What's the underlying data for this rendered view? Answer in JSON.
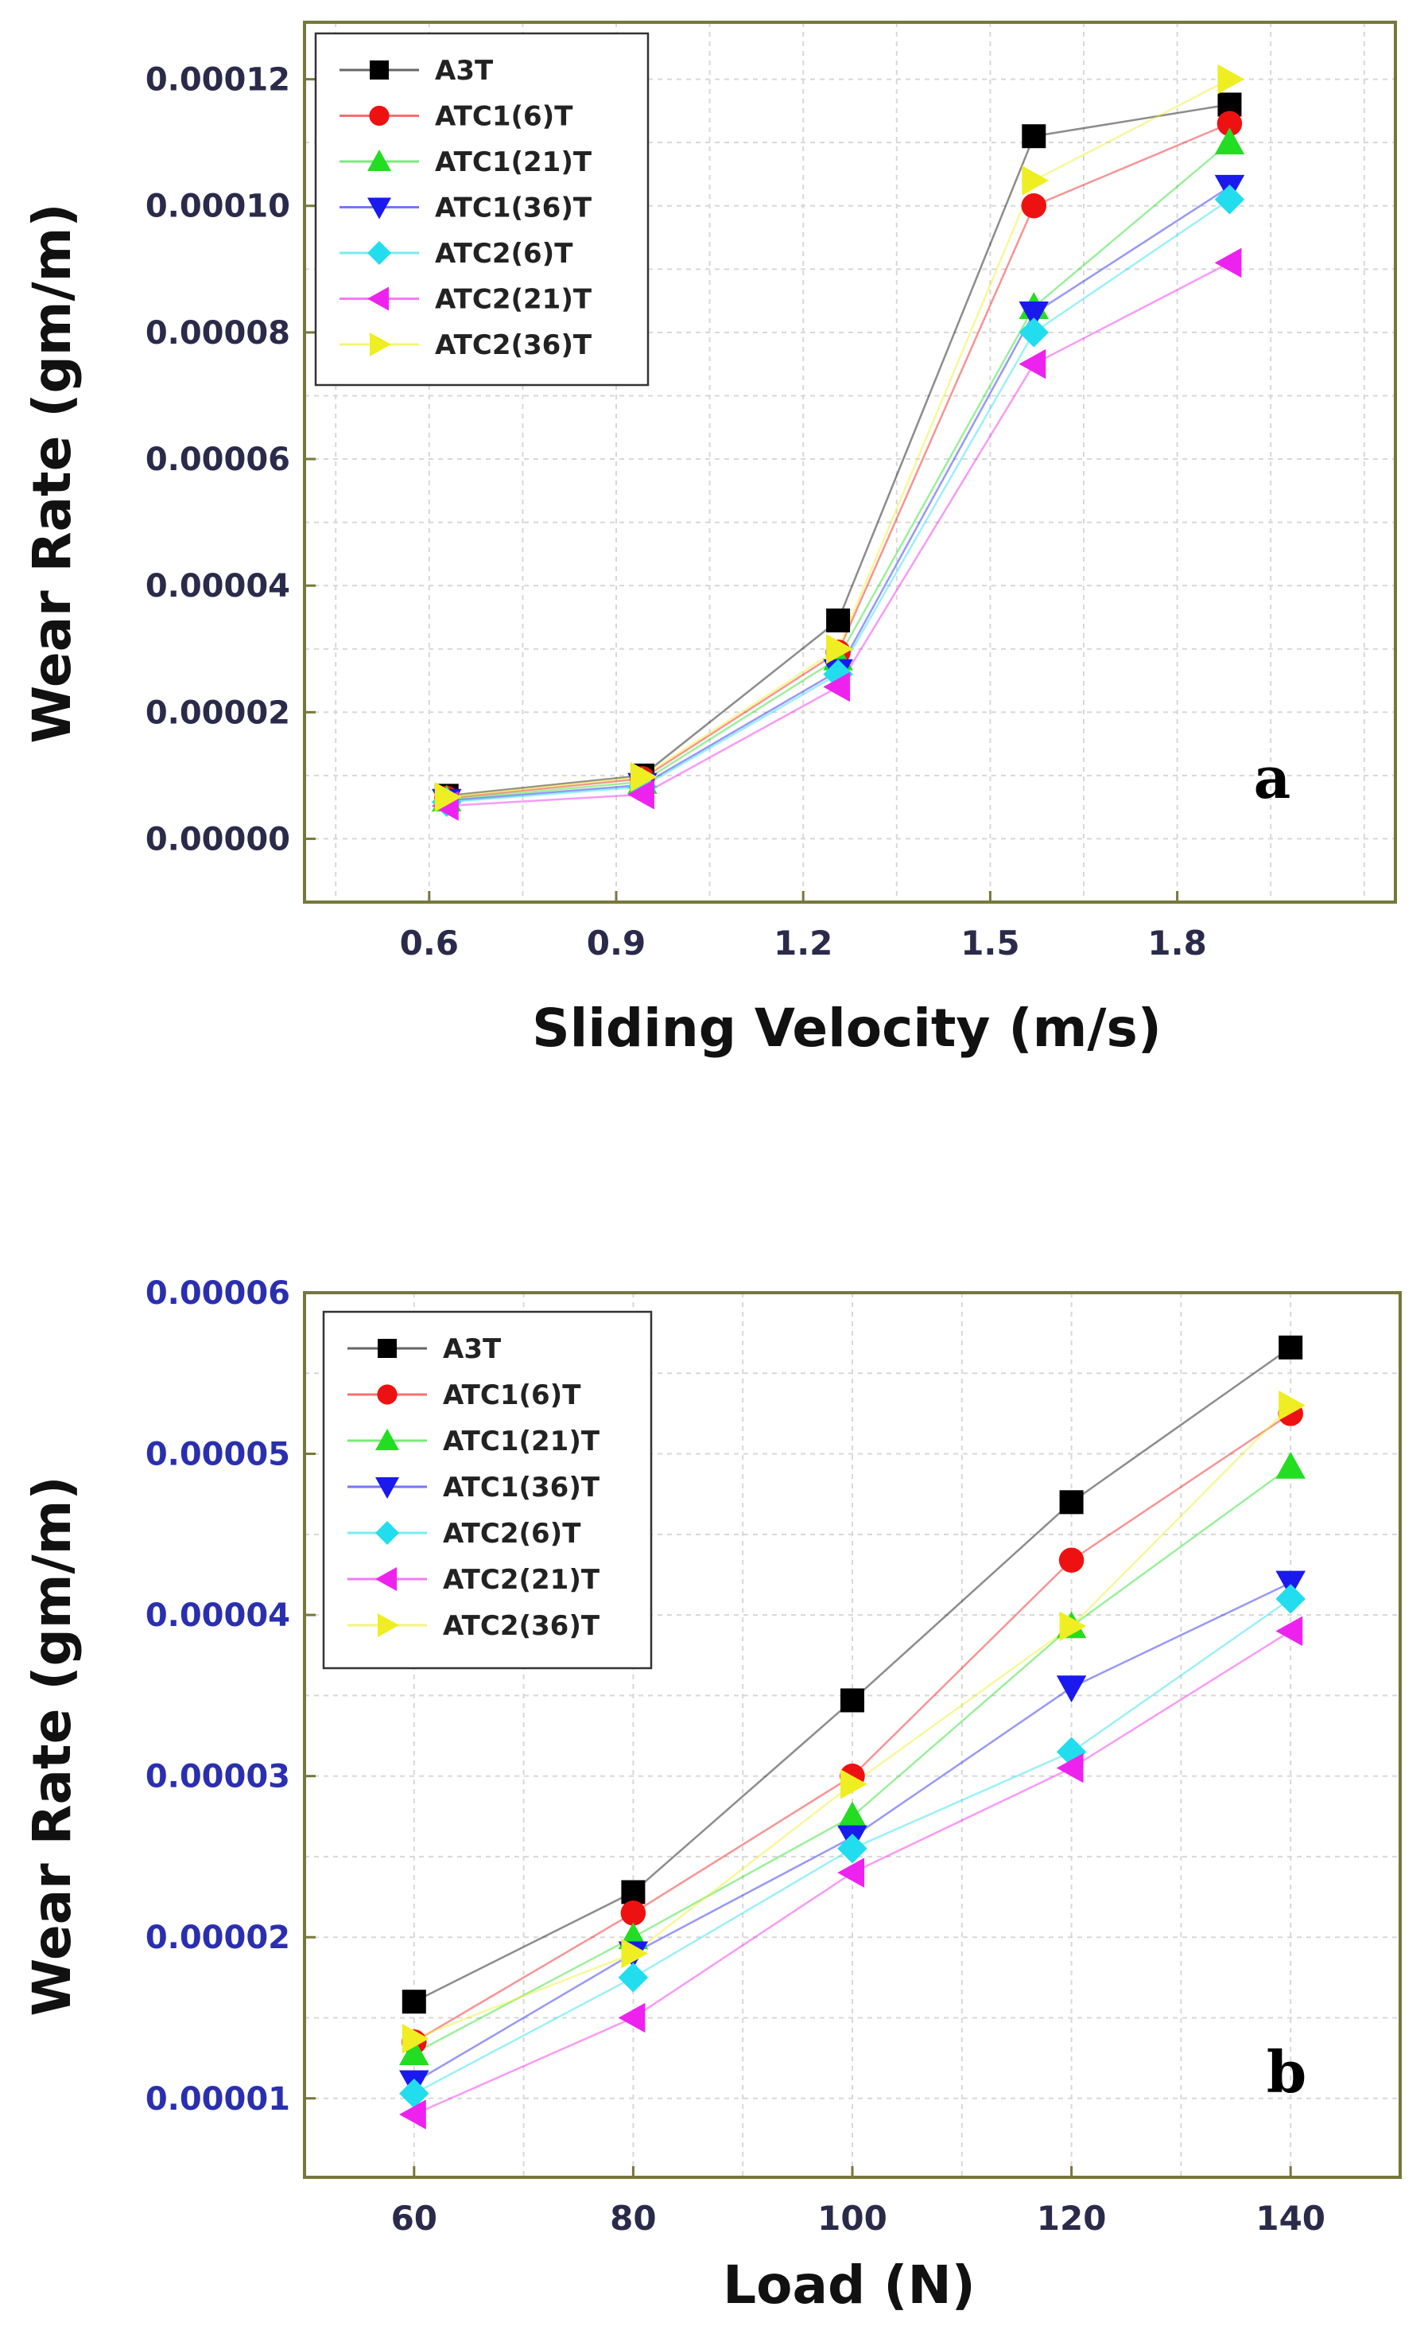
{
  "chart_data": [
    {
      "type": "line",
      "panel_label": "a",
      "title": "",
      "xlabel": "Sliding Velocity (m/s)",
      "ylabel": "Wear Rate (gm/m)",
      "xlim": [
        0.4,
        2.15
      ],
      "ylim": [
        -1e-05,
        0.000129
      ],
      "x_ticks": [
        0.6,
        0.9,
        1.2,
        1.5,
        1.8
      ],
      "x_tick_labels": [
        "0.6",
        "0.9",
        "1.2",
        "1.5",
        "1.8"
      ],
      "y_ticks": [
        0,
        2e-05,
        4e-05,
        6e-05,
        8e-05,
        0.0001,
        0.00012
      ],
      "y_tick_labels": [
        "0.00000",
        "0.00002",
        "0.00004",
        "0.00006",
        "0.00008",
        "0.00010",
        "0.00012"
      ],
      "x": [
        0.628,
        0.942,
        1.256,
        1.57,
        1.884
      ],
      "grid": true,
      "legend_position": "top-left",
      "series": [
        {
          "name": "A3T",
          "values": [
            6.8e-06,
            1e-05,
            3.45e-05,
            0.000111,
            0.000116
          ]
        },
        {
          "name": "ATC1(6)T",
          "values": [
            6.4e-06,
            9.5e-06,
            2.95e-05,
            0.0001,
            0.000113
          ]
        },
        {
          "name": "ATC1(21)T",
          "values": [
            6.2e-06,
            9e-06,
            2.85e-05,
            8.4e-05,
            0.00011
          ]
        },
        {
          "name": "ATC1(36)T",
          "values": [
            6e-06,
            8.5e-06,
            2.65e-05,
            8.3e-05,
            0.000103
          ]
        },
        {
          "name": "ATC2(6)T",
          "values": [
            5.8e-06,
            8.2e-06,
            2.6e-05,
            8e-05,
            0.000101
          ]
        },
        {
          "name": "ATC2(21)T",
          "values": [
            5.2e-06,
            7e-06,
            2.4e-05,
            7.5e-05,
            9.1e-05
          ]
        },
        {
          "name": "ATC2(36)T",
          "values": [
            6.6e-06,
            9.8e-06,
            3e-05,
            0.000104,
            0.00012
          ]
        }
      ]
    },
    {
      "type": "line",
      "panel_label": "b",
      "title": "",
      "xlabel": "Load (N)",
      "ylabel": "Wear Rate (gm/m)",
      "xlim": [
        50,
        150
      ],
      "ylim": [
        5.1e-06,
        6e-05
      ],
      "x_ticks": [
        60,
        80,
        100,
        120,
        140
      ],
      "x_tick_labels": [
        "60",
        "80",
        "100",
        "120",
        "140"
      ],
      "y_ticks": [
        1e-05,
        2e-05,
        3e-05,
        4e-05,
        5e-05,
        6e-05
      ],
      "y_tick_labels": [
        "0.00001",
        "0.00002",
        "0.00003",
        "0.00004",
        "0.00005",
        "0.00006"
      ],
      "x": [
        60,
        80,
        100,
        120,
        140
      ],
      "grid": true,
      "legend_position": "top-left",
      "series": [
        {
          "name": "A3T",
          "values": [
            1.6e-05,
            2.28e-05,
            3.47e-05,
            4.7e-05,
            5.66e-05
          ]
        },
        {
          "name": "ATC1(6)T",
          "values": [
            1.35e-05,
            2.15e-05,
            3e-05,
            4.34e-05,
            5.25e-05
          ]
        },
        {
          "name": "ATC1(21)T",
          "values": [
            1.28e-05,
            2e-05,
            2.75e-05,
            3.93e-05,
            4.92e-05
          ]
        },
        {
          "name": "ATC1(36)T",
          "values": [
            1.1e-05,
            1.9e-05,
            2.62e-05,
            3.55e-05,
            4.2e-05
          ]
        },
        {
          "name": "ATC2(6)T",
          "values": [
            1.03e-05,
            1.75e-05,
            2.55e-05,
            3.15e-05,
            4.1e-05
          ]
        },
        {
          "name": "ATC2(21)T",
          "values": [
            9e-06,
            1.5e-05,
            2.4e-05,
            3.05e-05,
            3.9e-05
          ]
        },
        {
          "name": "ATC2(36)T",
          "values": [
            1.37e-05,
            1.9e-05,
            2.95e-05,
            3.93e-05,
            5.3e-05
          ]
        }
      ]
    }
  ],
  "styles": [
    {
      "color": "#000000",
      "marker": "square"
    },
    {
      "color": "#ee1111",
      "marker": "circle"
    },
    {
      "color": "#22dd22",
      "marker": "triangle-up"
    },
    {
      "color": "#1a1aee",
      "marker": "triangle-down"
    },
    {
      "color": "#22ddee",
      "marker": "diamond"
    },
    {
      "color": "#ee22ee",
      "marker": "triangle-left"
    },
    {
      "color": "#eeee22",
      "marker": "triangle-right"
    }
  ],
  "colors": {
    "frame": "#77773a",
    "grid": "#d8d8d8",
    "tick_a": "#2a2a4a",
    "tick_b": "#2a2fb0"
  }
}
